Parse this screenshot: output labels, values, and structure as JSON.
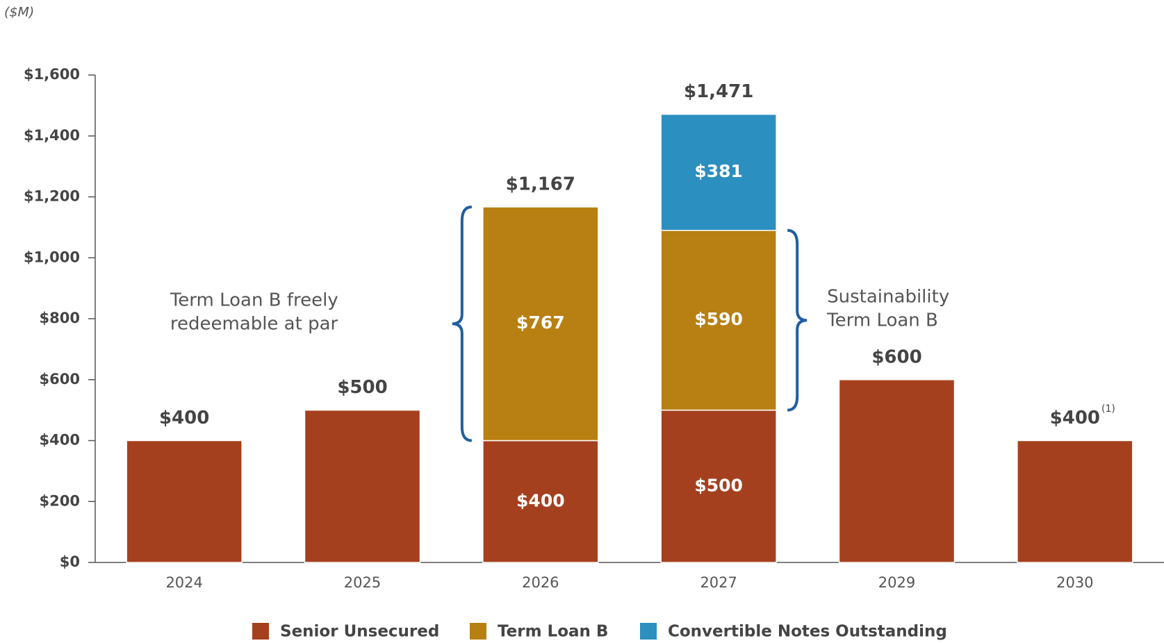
{
  "chart_data": {
    "type": "stacked_bar",
    "unit_label": "($M)",
    "categories": [
      "2024",
      "2025",
      "2026",
      "2027",
      "2029",
      "2030"
    ],
    "series": [
      {
        "name": "Senior Unsecured",
        "color": "#a5401f",
        "values": [
          400,
          500,
          400,
          500,
          600,
          400
        ],
        "value_labels": [
          null,
          null,
          "$400",
          "$500",
          null,
          null
        ]
      },
      {
        "name": "Term Loan B",
        "color": "#b88012",
        "values": [
          null,
          null,
          767,
          590,
          null,
          null
        ],
        "value_labels": [
          null,
          null,
          "$767",
          "$590",
          null,
          null
        ]
      },
      {
        "name": "Convertible Notes Outstanding",
        "color": "#2b8fc0",
        "values": [
          null,
          null,
          null,
          381,
          null,
          null
        ],
        "value_labels": [
          null,
          null,
          null,
          "$381",
          null,
          null
        ]
      }
    ],
    "totals": [
      400,
      500,
      1167,
      1471,
      600,
      400
    ],
    "total_labels": [
      "$400",
      "$500",
      "$1,167",
      "$1,471",
      "$600",
      "$400"
    ],
    "footnote": "(1)",
    "annotations": [
      {
        "lines": [
          "Term Loan B freely",
          "redeemable at par"
        ]
      },
      {
        "lines": [
          "Sustainability",
          "Term Loan B"
        ]
      }
    ],
    "ylim": [
      0,
      1600
    ],
    "yticks": [
      {
        "value": 0,
        "label": "$0"
      },
      {
        "value": 200,
        "label": "$200"
      },
      {
        "value": 400,
        "label": "$400"
      },
      {
        "value": 600,
        "label": "$600"
      },
      {
        "value": 800,
        "label": "$800"
      },
      {
        "value": 1000,
        "label": "$1,000"
      },
      {
        "value": 1200,
        "label": "$1,200"
      },
      {
        "value": 1400,
        "label": "$1,400"
      },
      {
        "value": 1600,
        "label": "$1,600"
      }
    ],
    "grid": false
  }
}
